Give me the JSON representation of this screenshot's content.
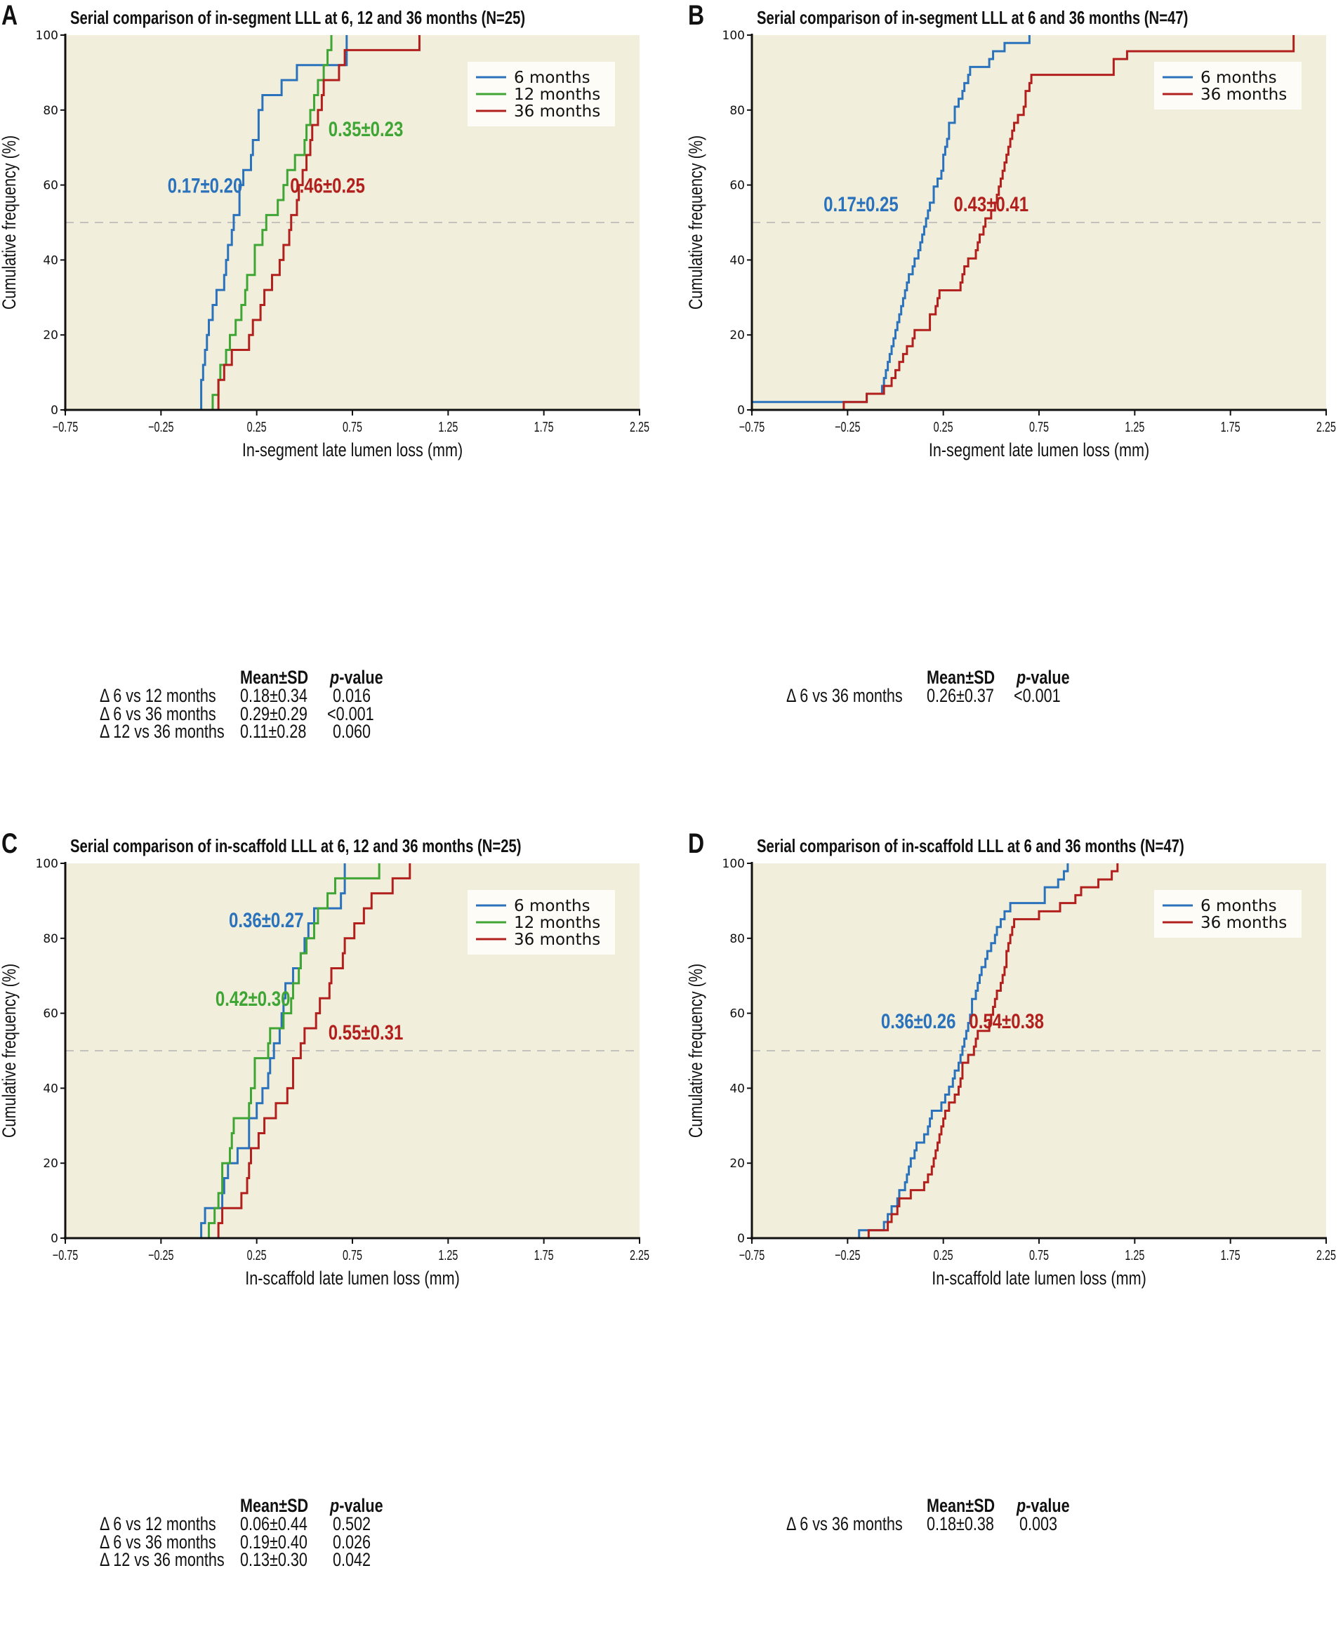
{
  "figure": {
    "colors": {
      "six_months": "#2a72bb",
      "twelve_months": "#3fa535",
      "thirtysix_months": "#b2201e",
      "plot_bg": "#f2eedc",
      "legend_bg": "#fdfcf7",
      "reference_line": "#a8a8a8"
    }
  },
  "stats_header": {
    "mean": "Mean±SD",
    "p_italic": "p",
    "p_rest": "-value"
  },
  "chart_data": [
    {
      "panel": "A",
      "type": "line",
      "step": true,
      "title": "Serial comparison of in-segment LLL at 6, 12 and 36 months (N=25)",
      "xlabel": "In-segment late lumen loss (mm)",
      "ylabel": "Cumulative frequency (%)",
      "xlim": [
        -0.75,
        2.25
      ],
      "ylim": [
        0,
        100
      ],
      "xticks": [
        "−0.75",
        "−0.25",
        "0.25",
        "0.75",
        "1.25",
        "1.75",
        "2.25"
      ],
      "xtick_values": [
        -0.75,
        -0.25,
        0.25,
        0.75,
        1.25,
        1.75,
        2.25
      ],
      "yticks": [
        "0",
        "20",
        "40",
        "60",
        "80",
        "100"
      ],
      "ytick_values": [
        0,
        20,
        40,
        60,
        80,
        100
      ],
      "reference_y": 50,
      "legend": "top-right",
      "series": [
        {
          "name": "6 months",
          "color_key": "six_months",
          "start_x": -0.46,
          "x": [
            -0.04,
            -0.04,
            -0.03,
            -0.02,
            -0.01,
            0.0,
            0.02,
            0.04,
            0.08,
            0.09,
            0.1,
            0.12,
            0.13,
            0.16,
            0.16,
            0.18,
            0.22,
            0.23,
            0.26,
            0.26,
            0.28,
            0.38,
            0.46,
            0.72,
            0.72
          ],
          "y": [
            4,
            8,
            12,
            16,
            20,
            24,
            28,
            32,
            36,
            40,
            44,
            48,
            52,
            56,
            60,
            64,
            68,
            72,
            76,
            80,
            84,
            88,
            92,
            96,
            100
          ],
          "label": "0.17±0.20",
          "label_pos": [
            -0.02,
            58
          ]
        },
        {
          "name": "12 months",
          "color_key": "twelve_months",
          "start_x": -0.04,
          "x": [
            0.02,
            0.05,
            0.06,
            0.09,
            0.11,
            0.14,
            0.17,
            0.19,
            0.2,
            0.24,
            0.24,
            0.28,
            0.3,
            0.36,
            0.39,
            0.41,
            0.45,
            0.5,
            0.51,
            0.53,
            0.55,
            0.57,
            0.6,
            0.62,
            0.64
          ],
          "y": [
            4,
            8,
            12,
            16,
            20,
            24,
            28,
            32,
            36,
            40,
            44,
            48,
            52,
            56,
            60,
            64,
            68,
            72,
            76,
            80,
            84,
            88,
            92,
            96,
            100
          ],
          "label": "0.35±0.23",
          "label_pos": [
            0.82,
            73
          ]
        },
        {
          "name": "36 months",
          "color_key": "thirtysix_months",
          "start_x": -0.01,
          "x": [
            0.05,
            0.05,
            0.08,
            0.12,
            0.21,
            0.23,
            0.27,
            0.29,
            0.33,
            0.37,
            0.39,
            0.42,
            0.43,
            0.46,
            0.47,
            0.49,
            0.51,
            0.53,
            0.54,
            0.57,
            0.59,
            0.6,
            0.68,
            0.71,
            1.1
          ],
          "y": [
            4,
            8,
            12,
            16,
            20,
            24,
            28,
            32,
            36,
            40,
            44,
            48,
            52,
            56,
            60,
            64,
            68,
            72,
            76,
            80,
            84,
            88,
            92,
            96,
            100
          ],
          "label": "0.46±0.25",
          "label_pos": [
            0.62,
            58
          ]
        }
      ],
      "stats_rows": [
        {
          "comparison": "Δ 6 vs 12 months",
          "mean_sd": "0.18±0.34",
          "p_value": "0.016"
        },
        {
          "comparison": "Δ 6 vs 36 months",
          "mean_sd": "0.29±0.29",
          "p_value": "<0.001"
        },
        {
          "comparison": "Δ 12 vs 36 months",
          "mean_sd": "0.11±0.28",
          "p_value": "0.060"
        }
      ]
    },
    {
      "panel": "B",
      "type": "line",
      "step": true,
      "title": "Serial comparison of in-segment LLL at 6 and 36 months (N=47)",
      "xlabel": "In-segment late lumen loss (mm)",
      "ylabel": "Cumulative frequency (%)",
      "xlim": [
        -0.75,
        2.25
      ],
      "ylim": [
        0,
        100
      ],
      "xticks": [
        "−0.75",
        "−0.25",
        "0.25",
        "0.75",
        "1.25",
        "1.75",
        "2.25"
      ],
      "xtick_values": [
        -0.75,
        -0.25,
        0.25,
        0.75,
        1.25,
        1.75,
        2.25
      ],
      "yticks": [
        "0",
        "20",
        "40",
        "60",
        "80",
        "100"
      ],
      "ytick_values": [
        0,
        20,
        40,
        60,
        80,
        100
      ],
      "reference_y": 50,
      "legend": "top-right",
      "series": [
        {
          "name": "6 months",
          "color_key": "six_months",
          "start_x": -0.75,
          "x": [
            -0.75,
            -0.15,
            -0.07,
            -0.06,
            -0.05,
            -0.04,
            -0.03,
            -0.02,
            -0.01,
            0.0,
            0.01,
            0.02,
            0.03,
            0.04,
            0.05,
            0.06,
            0.07,
            0.09,
            0.1,
            0.12,
            0.13,
            0.14,
            0.15,
            0.16,
            0.17,
            0.18,
            0.2,
            0.2,
            0.22,
            0.24,
            0.25,
            0.25,
            0.26,
            0.27,
            0.28,
            0.28,
            0.31,
            0.31,
            0.33,
            0.35,
            0.36,
            0.38,
            0.39,
            0.49,
            0.51,
            0.57,
            0.7
          ],
          "y": [
            2.1,
            4.3,
            6.4,
            8.5,
            10.6,
            12.8,
            14.9,
            17.0,
            19.1,
            21.3,
            23.4,
            25.5,
            27.7,
            29.8,
            31.9,
            34.0,
            36.2,
            38.3,
            40.4,
            42.6,
            44.7,
            46.8,
            48.9,
            51.1,
            53.2,
            55.3,
            57.4,
            59.6,
            61.7,
            63.8,
            66.0,
            68.1,
            70.2,
            72.3,
            74.5,
            76.6,
            78.7,
            80.9,
            83.0,
            85.1,
            87.2,
            89.4,
            91.5,
            93.6,
            95.7,
            97.9,
            100
          ],
          "label": "0.17±0.25",
          "label_pos": [
            -0.18,
            53
          ]
        },
        {
          "name": "36 months",
          "color_key": "thirtysix_months",
          "start_x": -0.27,
          "x": [
            -0.27,
            -0.15,
            -0.06,
            -0.02,
            0.0,
            0.02,
            0.04,
            0.06,
            0.09,
            0.1,
            0.18,
            0.18,
            0.21,
            0.22,
            0.23,
            0.34,
            0.35,
            0.36,
            0.38,
            0.42,
            0.43,
            0.44,
            0.46,
            0.47,
            0.5,
            0.52,
            0.53,
            0.54,
            0.55,
            0.56,
            0.57,
            0.58,
            0.59,
            0.6,
            0.61,
            0.62,
            0.64,
            0.67,
            0.68,
            0.68,
            0.7,
            0.71,
            1.14,
            1.14,
            1.21,
            2.08,
            2.08
          ],
          "y": [
            2.1,
            4.3,
            6.4,
            8.5,
            10.6,
            12.8,
            14.9,
            17.0,
            19.1,
            21.3,
            23.4,
            25.5,
            27.7,
            29.8,
            31.9,
            34.0,
            36.2,
            38.3,
            40.4,
            42.6,
            44.7,
            46.8,
            48.9,
            51.1,
            53.2,
            55.3,
            57.4,
            59.6,
            61.7,
            63.8,
            66.0,
            68.1,
            70.2,
            72.3,
            74.5,
            76.6,
            78.7,
            80.9,
            83.0,
            85.1,
            87.2,
            89.4,
            91.5,
            93.6,
            95.7,
            97.9,
            100
          ],
          "label": "0.43±0.41",
          "label_pos": [
            0.5,
            53
          ]
        }
      ],
      "stats_rows": [
        {
          "comparison": "Δ 6 vs 36 months",
          "mean_sd": "0.26±0.37",
          "p_value": "<0.001"
        }
      ]
    },
    {
      "panel": "C",
      "type": "line",
      "step": true,
      "title": "Serial comparison of in-scaffold LLL at 6, 12 and 36 months (N=25)",
      "xlabel": "In-scaffold late lumen loss (mm)",
      "ylabel": "Cumulative frequency (%)",
      "xlim": [
        -0.75,
        2.25
      ],
      "ylim": [
        0,
        100
      ],
      "xticks": [
        "−0.75",
        "−0.25",
        "0.25",
        "0.75",
        "1.25",
        "1.75",
        "2.25"
      ],
      "xtick_values": [
        -0.75,
        -0.25,
        0.25,
        0.75,
        1.25,
        1.75,
        2.25
      ],
      "yticks": [
        "0",
        "20",
        "40",
        "60",
        "80",
        "100"
      ],
      "ytick_values": [
        0,
        20,
        40,
        60,
        80,
        100
      ],
      "reference_y": 50,
      "legend": "top-right",
      "series": [
        {
          "name": "6 months",
          "color_key": "six_months",
          "start_x": -0.46,
          "x": [
            -0.04,
            -0.02,
            0.07,
            0.08,
            0.1,
            0.15,
            0.21,
            0.21,
            0.25,
            0.28,
            0.31,
            0.32,
            0.34,
            0.37,
            0.38,
            0.39,
            0.4,
            0.44,
            0.48,
            0.5,
            0.52,
            0.55,
            0.69,
            0.71,
            0.71
          ],
          "y": [
            4,
            8,
            12,
            16,
            20,
            24,
            28,
            32,
            36,
            40,
            44,
            48,
            52,
            56,
            60,
            64,
            68,
            72,
            76,
            80,
            84,
            88,
            92,
            96,
            100
          ],
          "label": "0.36±0.27",
          "label_pos": [
            0.3,
            83
          ]
        },
        {
          "name": "12 months",
          "color_key": "twelve_months",
          "start_x": -0.04,
          "x": [
            0.0,
            0.03,
            0.05,
            0.07,
            0.07,
            0.11,
            0.12,
            0.13,
            0.21,
            0.22,
            0.24,
            0.24,
            0.31,
            0.32,
            0.39,
            0.43,
            0.44,
            0.47,
            0.48,
            0.51,
            0.55,
            0.57,
            0.62,
            0.66,
            0.89
          ],
          "y": [
            4,
            8,
            12,
            16,
            20,
            24,
            28,
            32,
            36,
            40,
            44,
            48,
            52,
            56,
            60,
            64,
            68,
            72,
            76,
            80,
            84,
            88,
            92,
            96,
            100
          ],
          "label": "0.42±0.30",
          "label_pos": [
            0.23,
            62
          ]
        },
        {
          "name": "36 months",
          "color_key": "thirtysix_months",
          "start_x": 0.0,
          "x": [
            0.05,
            0.07,
            0.17,
            0.2,
            0.21,
            0.22,
            0.26,
            0.29,
            0.35,
            0.41,
            0.44,
            0.44,
            0.48,
            0.5,
            0.56,
            0.58,
            0.63,
            0.64,
            0.7,
            0.71,
            0.76,
            0.81,
            0.85,
            0.96,
            1.05
          ],
          "y": [
            4,
            8,
            12,
            16,
            20,
            24,
            28,
            32,
            36,
            40,
            44,
            48,
            52,
            56,
            60,
            64,
            68,
            72,
            76,
            80,
            84,
            88,
            92,
            96,
            100
          ],
          "label": "0.55±0.31",
          "label_pos": [
            0.82,
            53
          ]
        }
      ],
      "stats_rows": [
        {
          "comparison": "Δ 6 vs 12 months",
          "mean_sd": "0.06±0.44",
          "p_value": "0.502"
        },
        {
          "comparison": "Δ 6 vs 36 months",
          "mean_sd": "0.19±0.40",
          "p_value": "0.026"
        },
        {
          "comparison": "Δ 12 vs 36 months",
          "mean_sd": "0.13±0.30",
          "p_value": "0.042"
        }
      ]
    },
    {
      "panel": "D",
      "type": "line",
      "step": true,
      "title": "Serial comparison of in-scaffold LLL at 6 and 36 months (N=47)",
      "xlabel": "In-scaffold late lumen loss (mm)",
      "ylabel": "Cumulative frequency (%)",
      "xlim": [
        -0.75,
        2.25
      ],
      "ylim": [
        0,
        100
      ],
      "xticks": [
        "−0.75",
        "−0.25",
        "0.25",
        "0.75",
        "1.25",
        "1.75",
        "2.25"
      ],
      "xtick_values": [
        -0.75,
        -0.25,
        0.25,
        0.75,
        1.25,
        1.75,
        2.25
      ],
      "yticks": [
        "0",
        "20",
        "40",
        "60",
        "80",
        "100"
      ],
      "ytick_values": [
        0,
        20,
        40,
        60,
        80,
        100
      ],
      "reference_y": 50,
      "legend": "top-right",
      "series": [
        {
          "name": "6 months",
          "color_key": "six_months",
          "start_x": -0.48,
          "x": [
            -0.19,
            -0.06,
            -0.04,
            -0.02,
            0.01,
            0.02,
            0.05,
            0.06,
            0.07,
            0.08,
            0.1,
            0.11,
            0.15,
            0.17,
            0.18,
            0.19,
            0.24,
            0.26,
            0.28,
            0.3,
            0.31,
            0.33,
            0.34,
            0.35,
            0.36,
            0.37,
            0.38,
            0.39,
            0.4,
            0.4,
            0.42,
            0.43,
            0.44,
            0.45,
            0.47,
            0.48,
            0.5,
            0.52,
            0.53,
            0.55,
            0.57,
            0.6,
            0.78,
            0.78,
            0.85,
            0.88,
            0.9
          ],
          "y": [
            2.1,
            4.3,
            6.4,
            8.5,
            10.6,
            12.8,
            14.9,
            17.0,
            19.1,
            21.3,
            23.4,
            25.5,
            27.7,
            29.8,
            31.9,
            34.0,
            36.2,
            38.3,
            40.4,
            42.6,
            44.7,
            46.8,
            48.9,
            51.1,
            53.2,
            55.3,
            57.4,
            59.6,
            61.7,
            63.8,
            66.0,
            68.1,
            70.2,
            72.3,
            74.5,
            76.6,
            78.7,
            80.9,
            83.0,
            85.1,
            87.2,
            89.4,
            91.5,
            93.6,
            95.7,
            97.9,
            100
          ],
          "label": "0.36±0.26",
          "label_pos": [
            0.12,
            56
          ]
        },
        {
          "name": "36 months",
          "color_key": "thirtysix_months",
          "start_x": -0.19,
          "x": [
            -0.14,
            -0.04,
            -0.02,
            0.01,
            0.02,
            0.08,
            0.15,
            0.17,
            0.19,
            0.2,
            0.21,
            0.22,
            0.23,
            0.24,
            0.25,
            0.26,
            0.28,
            0.31,
            0.33,
            0.34,
            0.35,
            0.35,
            0.38,
            0.41,
            0.42,
            0.43,
            0.49,
            0.5,
            0.51,
            0.52,
            0.53,
            0.55,
            0.56,
            0.57,
            0.58,
            0.58,
            0.59,
            0.6,
            0.61,
            0.62,
            0.75,
            0.86,
            0.94,
            0.97,
            1.06,
            1.13,
            1.16
          ],
          "y": [
            2.1,
            4.3,
            6.4,
            8.5,
            10.6,
            12.8,
            14.9,
            17.0,
            19.1,
            21.3,
            23.4,
            25.5,
            27.7,
            29.8,
            31.9,
            34.0,
            36.2,
            38.3,
            40.4,
            42.6,
            44.7,
            46.8,
            48.9,
            51.1,
            53.2,
            55.3,
            57.4,
            59.6,
            61.7,
            63.8,
            66.0,
            68.1,
            70.2,
            72.3,
            74.5,
            76.6,
            78.7,
            80.9,
            83.0,
            85.1,
            87.2,
            89.4,
            91.5,
            93.6,
            95.7,
            97.9,
            100
          ],
          "label": "0.54±0.38",
          "label_pos": [
            0.58,
            56
          ]
        }
      ],
      "stats_rows": [
        {
          "comparison": "Δ 6 vs 36 months",
          "mean_sd": "0.18±0.38",
          "p_value": "0.003"
        }
      ]
    }
  ]
}
